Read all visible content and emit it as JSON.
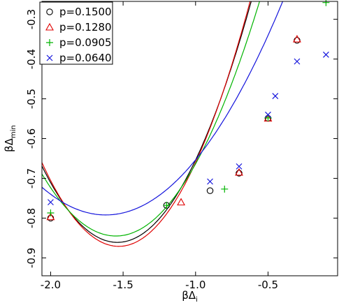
{
  "chart_data": {
    "type": "scatter",
    "xlabel": {
      "main": "βΔ",
      "sub": "i"
    },
    "ylabel": {
      "main": "βΔ",
      "sub": "min"
    },
    "xlim": [
      -2.06,
      -0.02
    ],
    "ylim": [
      -0.945,
      -0.255
    ],
    "xticks": [
      -2.0,
      -1.5,
      -1.0,
      -0.5
    ],
    "xtick_labels": [
      "-2.0",
      "-1.5",
      "-1.0",
      "-0.5"
    ],
    "yticks": [
      -0.3,
      -0.4,
      -0.5,
      -0.6,
      -0.7,
      -0.8,
      -0.9
    ],
    "ytick_labels": [
      "-0.3",
      "-0.4",
      "-0.5",
      "-0.6",
      "-0.7",
      "-0.8",
      "-0.9"
    ],
    "grid": false,
    "legend_position": "top-left",
    "series": [
      {
        "name": "p=0.1500",
        "marker": "circle",
        "color": "#000000",
        "points": [
          [
            -2.0,
            -0.8
          ],
          [
            -1.2,
            -0.768
          ],
          [
            -0.9,
            -0.731
          ],
          [
            -0.7,
            -0.687
          ],
          [
            -0.5,
            -0.549
          ],
          [
            -0.3,
            -0.353
          ]
        ],
        "fit": {
          "x_min": -2.06,
          "x_max": -0.3,
          "vertex_x": -1.54,
          "vertex_y": -0.861,
          "curvature": 0.71
        }
      },
      {
        "name": "p=0.1280",
        "marker": "triangle",
        "color": "#e00000",
        "points": [
          [
            -2.0,
            -0.797
          ],
          [
            -1.1,
            -0.76
          ],
          [
            -0.7,
            -0.685
          ],
          [
            -0.5,
            -0.549
          ],
          [
            -0.3,
            -0.35
          ]
        ],
        "fit": {
          "x_min": -2.06,
          "x_max": -0.3,
          "vertex_x": -1.53,
          "vertex_y": -0.871,
          "curvature": 0.75
        }
      },
      {
        "name": "p=0.0905",
        "marker": "plus",
        "color": "#00b400",
        "points": [
          [
            -2.0,
            -0.787
          ],
          [
            -1.2,
            -0.768
          ],
          [
            -0.8,
            -0.727
          ],
          [
            -0.5,
            -0.548
          ],
          [
            -0.1,
            -0.258
          ]
        ],
        "fit": {
          "x_min": -2.06,
          "x_max": -0.1,
          "vertex_x": -1.55,
          "vertex_y": -0.845,
          "curvature": 0.6
        }
      },
      {
        "name": "p=0.0640",
        "marker": "x",
        "color": "#1414dc",
        "points": [
          [
            -2.0,
            -0.76
          ],
          [
            -0.9,
            -0.708
          ],
          [
            -0.7,
            -0.67
          ],
          [
            -0.5,
            -0.54
          ],
          [
            -0.45,
            -0.493
          ],
          [
            -0.3,
            -0.406
          ],
          [
            -0.1,
            -0.389
          ]
        ],
        "fit": {
          "x_min": -2.06,
          "x_max": -0.02,
          "vertex_x": -1.62,
          "vertex_y": -0.792,
          "curvature": 0.36
        }
      }
    ]
  }
}
